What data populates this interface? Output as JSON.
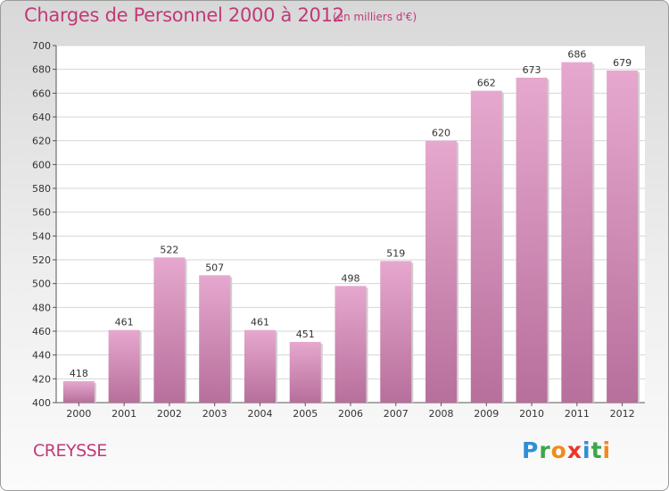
{
  "title": "Charges de Personnel 2000 à 2012",
  "subtitle": "(en milliers d'€)",
  "town": "CREYSSE",
  "logo": [
    "P",
    "r",
    "o",
    "x",
    "i",
    "t",
    "i"
  ],
  "logo_colors": [
    "#2f8fd6",
    "#3aa648",
    "#f28a1a",
    "#e8372b",
    "#2f8fd6",
    "#3aa648",
    "#f28a1a"
  ],
  "bar_color_top": "#e6a8ce",
  "bar_color_bottom": "#b76f9b",
  "chart_data": {
    "type": "bar",
    "title": "Charges de Personnel 2000 à 2012",
    "categories": [
      "2000",
      "2001",
      "2002",
      "2003",
      "2004",
      "2005",
      "2006",
      "2007",
      "2008",
      "2009",
      "2010",
      "2011",
      "2012"
    ],
    "values": [
      418,
      461,
      522,
      507,
      461,
      451,
      498,
      519,
      620,
      662,
      673,
      686,
      679
    ],
    "ylim": [
      400,
      700
    ],
    "yticks": [
      400,
      420,
      440,
      460,
      480,
      500,
      520,
      540,
      560,
      580,
      600,
      620,
      640,
      660,
      680,
      700
    ],
    "grid": true
  }
}
